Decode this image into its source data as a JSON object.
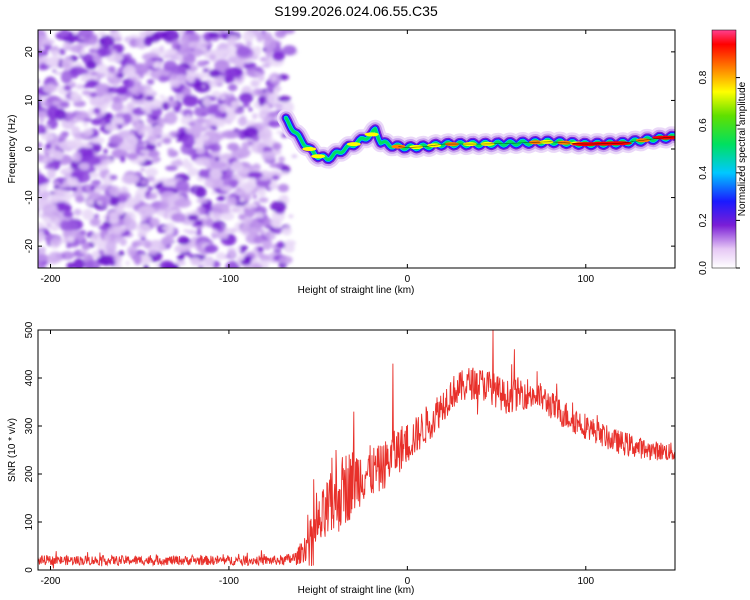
{
  "title": "S199.2026.024.06.55.C35",
  "chart_data": [
    {
      "type": "heatmap",
      "xlabel": "Height of straight line (km)",
      "ylabel": "Frequency (Hz)",
      "xlim": [
        -207,
        150
      ],
      "ylim": [
        -24.5,
        24.5
      ],
      "xticks": [
        -200,
        -100,
        0,
        100
      ],
      "yticks": [
        -20,
        -10,
        0,
        10,
        20
      ],
      "noise_region_x": [
        -207,
        -63
      ],
      "ridge": {
        "x": [
          -68,
          -64,
          -60,
          -55,
          -50,
          -45,
          -40,
          -35,
          -30,
          -25,
          -20,
          -18,
          -15,
          -10,
          -5,
          0,
          10,
          20,
          40,
          60,
          80,
          100,
          120,
          140,
          150
        ],
        "y": [
          6,
          4,
          2,
          0,
          -1.5,
          -2,
          -1,
          0,
          1,
          2,
          3,
          4,
          1.5,
          0.8,
          0.5,
          0.3,
          0.5,
          1,
          1,
          1.2,
          1.5,
          1,
          1.2,
          2.2,
          2.5
        ]
      },
      "colorbar": {
        "label": "Normalized spectral amplitude",
        "range": [
          0,
          1
        ],
        "ticks": [
          "0.0",
          "0.2",
          "0.4",
          "0.6",
          "0.8"
        ]
      }
    },
    {
      "type": "line",
      "xlabel": "Height of straight line (km)",
      "ylabel": "SNR (10 * v/v)",
      "xlim": [
        -207,
        150
      ],
      "ylim": [
        0,
        500
      ],
      "xticks": [
        -200,
        -100,
        0,
        100
      ],
      "yticks": [
        0,
        100,
        200,
        300,
        400,
        500
      ],
      "series": [
        {
          "name": "SNR",
          "color": "#e8302a",
          "envelope": {
            "x": [
              -207,
              -70,
              -62,
              -55,
              -45,
              -35,
              -25,
              -15,
              -5,
              5,
              15,
              25,
              35,
              45,
              55,
              65,
              75,
              85,
              95,
              105,
              115,
              125,
              135,
              150
            ],
            "mean": [
              20,
              20,
              25,
              60,
              120,
              170,
              200,
              210,
              250,
              280,
              320,
              370,
              390,
              385,
              360,
              370,
              360,
              330,
              310,
              290,
              270,
              260,
              250,
              245
            ],
            "amp": [
              10,
              10,
              15,
              40,
              70,
              80,
              60,
              50,
              50,
              40,
              40,
              35,
              35,
              35,
              35,
              35,
              30,
              30,
              30,
              25,
              25,
              25,
              20,
              20
            ]
          },
          "spikes": [
            {
              "x": -40,
              "y": 250
            },
            {
              "x": -30,
              "y": 330
            },
            {
              "x": -8,
              "y": 430
            },
            {
              "x": 48,
              "y": 500
            },
            {
              "x": 60,
              "y": 460
            }
          ]
        }
      ]
    }
  ]
}
